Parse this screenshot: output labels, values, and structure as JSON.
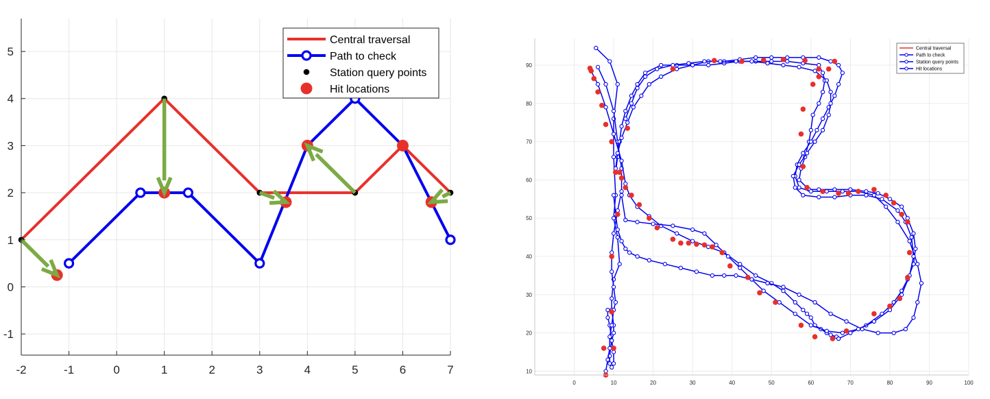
{
  "chart_data": [
    {
      "type": "line",
      "xlim": [
        -2,
        7
      ],
      "ylim": [
        -1.45,
        5.7
      ],
      "xticks": [
        -2,
        -1,
        0,
        1,
        2,
        3,
        4,
        5,
        6,
        7
      ],
      "xtick_labels": [
        "-2",
        "-1",
        "0",
        "1",
        "2",
        "3",
        "4",
        "5",
        "6",
        "7"
      ],
      "yticks": [
        -1,
        0,
        1,
        2,
        3,
        4,
        5
      ],
      "ytick_labels": [
        "-1",
        "0",
        "1",
        "2",
        "3",
        "4",
        "5"
      ],
      "grid": true,
      "legend_position": "top-right",
      "legend": [
        "Central traversal",
        "Path to check",
        "Station query points",
        "Hit locations"
      ],
      "colors": {
        "central": "#e8302a",
        "path": "#0000ee",
        "station": "#000000",
        "hit": "#e8302a",
        "arrow": "#7caa45"
      },
      "series": [
        {
          "name": "Central traversal",
          "x": [
            -2,
            1,
            3,
            5,
            6,
            7
          ],
          "y": [
            1,
            4,
            2,
            2,
            3,
            2
          ]
        },
        {
          "name": "Path to check",
          "x": [
            -1,
            0.5,
            1.5,
            3,
            4,
            5,
            6,
            7
          ],
          "y": [
            0.5,
            2,
            2,
            0.5,
            3,
            4,
            3,
            1
          ]
        },
        {
          "name": "Station query points",
          "x": [
            -2,
            1,
            3,
            5,
            7
          ],
          "y": [
            1,
            4,
            2,
            2,
            2
          ]
        },
        {
          "name": "Hit locations",
          "x": [
            -1.25,
            1,
            3.55,
            4,
            6,
            6.6
          ],
          "y": [
            0.25,
            2,
            1.8,
            3,
            3,
            1.8
          ]
        }
      ],
      "arrows": [
        {
          "from": [
            -2,
            1
          ],
          "to": [
            -1.25,
            0.25
          ]
        },
        {
          "from": [
            1,
            4
          ],
          "to": [
            1,
            2
          ]
        },
        {
          "from": [
            3,
            2
          ],
          "to": [
            3.55,
            1.8
          ]
        },
        {
          "from": [
            5,
            2
          ],
          "to": [
            4,
            3
          ]
        },
        {
          "from": [
            7,
            2
          ],
          "to": [
            6.6,
            1.8
          ]
        }
      ]
    },
    {
      "type": "line",
      "xlim": [
        -10,
        100
      ],
      "ylim": [
        9,
        97
      ],
      "xticks": [
        0,
        10,
        20,
        30,
        40,
        50,
        60,
        70,
        80,
        90,
        100
      ],
      "xtick_labels": [
        "0",
        "10",
        "20",
        "30",
        "40",
        "50",
        "60",
        "70",
        "80",
        "90",
        "100"
      ],
      "yticks": [
        10,
        20,
        30,
        40,
        50,
        60,
        70,
        80,
        90
      ],
      "ytick_labels": [
        "10",
        "20",
        "30",
        "40",
        "50",
        "60",
        "70",
        "80",
        "90"
      ],
      "grid": true,
      "legend_position": "top-right",
      "legend": [
        "Central traversal",
        "Path to check",
        "Station query points",
        "Hit locations"
      ],
      "colors": {
        "central": "#e8302a",
        "path": "#0000ee",
        "hit": "#e8302a"
      },
      "paths": [
        {
          "name": "Path to check",
          "x": [
            5.5,
            9,
            11,
            10,
            10,
            10.5,
            10,
            11,
            11.5,
            10,
            9.5,
            9.5,
            10,
            10,
            9.5,
            10,
            10,
            9.5,
            9,
            9,
            9.5,
            9,
            8.5,
            8.5
          ],
          "y": [
            94.5,
            91,
            85,
            76,
            66,
            56,
            50,
            45,
            38,
            34,
            29,
            26,
            22,
            20,
            18,
            15,
            12,
            11,
            12,
            14,
            18,
            22,
            24,
            26
          ]
        },
        {
          "name": "Path to check",
          "x": [
            6,
            8,
            10,
            11,
            12,
            12,
            11,
            10,
            9.5,
            9.5,
            10,
            10.5,
            10,
            9.5,
            9,
            9,
            8.5,
            8,
            8
          ],
          "y": [
            89.5,
            85,
            78,
            70,
            63,
            57,
            52,
            46,
            41,
            36,
            32,
            28,
            26,
            22,
            19,
            16,
            13,
            10,
            9
          ]
        },
        {
          "name": "Path to check",
          "x": [
            4,
            6,
            8,
            10,
            12,
            13,
            14,
            16,
            19,
            22,
            26,
            30,
            34,
            38,
            42,
            46,
            50,
            53,
            56,
            58,
            59,
            60,
            61,
            62.5,
            64,
            65,
            66.5,
            67
          ],
          "y": [
            89,
            85,
            79,
            72,
            65,
            59,
            56,
            53,
            50.5,
            48,
            46,
            44,
            42.5,
            41,
            38,
            35,
            33,
            31,
            28,
            26,
            25,
            24,
            22,
            21,
            20,
            19.5,
            19,
            18.5
          ]
        },
        {
          "name": "Path to check",
          "x": [
            67,
            70,
            74,
            78,
            81,
            83,
            84.5,
            86,
            86.5,
            86,
            84.5,
            83,
            80,
            77,
            74,
            70,
            66,
            62,
            59.5,
            57,
            57.5,
            58.5,
            59.5,
            60,
            60.5,
            62,
            63,
            63.5,
            63,
            62
          ],
          "y": [
            18.5,
            20,
            22,
            25,
            28,
            31,
            34,
            38,
            42,
            46,
            50,
            53,
            55,
            56.5,
            57,
            57.5,
            57.5,
            57.5,
            57.5,
            60,
            63,
            66,
            70,
            73,
            77,
            80,
            83,
            86,
            88,
            90
          ]
        },
        {
          "name": "Path to check",
          "x": [
            62,
            58,
            54,
            50,
            46,
            42,
            38,
            34,
            30,
            26,
            22,
            18,
            16,
            14.5,
            13,
            12,
            11.5,
            11,
            10.5
          ],
          "y": [
            90,
            90.5,
            91,
            91,
            91,
            91,
            90.5,
            90,
            90,
            90,
            90,
            88,
            85,
            82,
            78,
            74,
            70,
            66,
            62
          ]
        },
        {
          "name": "Path to check",
          "x": [
            10,
            10.5,
            11,
            12,
            13,
            14,
            16,
            19,
            23,
            27,
            31,
            35,
            38,
            41,
            45,
            49,
            53,
            57,
            61,
            65,
            69,
            73,
            77,
            81,
            84,
            86,
            87,
            88,
            87,
            85,
            82,
            79,
            76,
            72,
            68,
            64,
            60,
            57,
            56,
            56.5,
            58,
            60,
            61.5,
            63,
            64.5,
            66,
            67,
            68,
            67,
            65,
            62,
            58,
            54,
            50,
            46,
            42,
            38,
            34,
            30,
            26,
            22,
            19,
            17,
            15,
            13.5,
            12,
            11,
            10.5
          ],
          "y": [
            56,
            51,
            47,
            44,
            42,
            41,
            40,
            39,
            38,
            37,
            36,
            35,
            35,
            35,
            34,
            33,
            32,
            30,
            28,
            25,
            23,
            21,
            20,
            20,
            21,
            24,
            28,
            33,
            38,
            44,
            49,
            53,
            56,
            57,
            57,
            57,
            57,
            58,
            61,
            64,
            67,
            70,
            73,
            76,
            79,
            82,
            85,
            88,
            90,
            91,
            92,
            92,
            92,
            92,
            92,
            91.5,
            91,
            91,
            90,
            89,
            87,
            85,
            82,
            79,
            75,
            71,
            67,
            63
          ]
        },
        {
          "name": "Path to check",
          "x": [
            12,
            13,
            16,
            20,
            25,
            30,
            33,
            36,
            39,
            42,
            45,
            48,
            52,
            56,
            60,
            64,
            68,
            72,
            76,
            80,
            83,
            85,
            86,
            85.5,
            84,
            82,
            78,
            74,
            70,
            66,
            62,
            58,
            56,
            55.5,
            57,
            59,
            61,
            63,
            64.5,
            65,
            65,
            64,
            61,
            57,
            53,
            49,
            45,
            41,
            37,
            33,
            29,
            25,
            21,
            18,
            16,
            14.5,
            13
          ],
          "y": [
            56,
            49.5,
            49,
            48.5,
            48,
            47,
            46,
            43,
            40,
            37,
            34,
            31,
            28,
            25,
            22,
            20.5,
            20,
            21,
            23,
            26,
            30,
            35,
            40,
            45,
            49,
            52,
            55,
            56,
            56,
            55.5,
            55.5,
            56,
            58,
            61,
            64,
            67,
            70,
            73,
            77,
            80,
            83,
            86,
            88.5,
            89.5,
            90,
            90.5,
            91,
            91,
            91,
            91,
            90.5,
            90,
            89,
            87,
            84,
            80,
            76
          ]
        }
      ],
      "hits": {
        "x": [
          4,
          4.3,
          5,
          6,
          7,
          8,
          9.5,
          10.5,
          11.5,
          12,
          13,
          13.5,
          14.5,
          16.5,
          19,
          21,
          25,
          27,
          29,
          31,
          33,
          35,
          37.5,
          39.5,
          44,
          47,
          51,
          57.5,
          61,
          65.5,
          69,
          76,
          80,
          82.5,
          84.5,
          85,
          84.5,
          83,
          81,
          79,
          76,
          72,
          69.5,
          67,
          63,
          59,
          58,
          57.5,
          58,
          60.5,
          62,
          64.5,
          66,
          62,
          58.5,
          53,
          48,
          42.5,
          35.5,
          25,
          11,
          9.5,
          9.5,
          10,
          10.5,
          7.5,
          8
        ],
        "y": [
          89.2,
          88.5,
          86.5,
          83,
          79.5,
          74.5,
          70,
          62,
          62,
          60.5,
          58,
          73.5,
          56,
          53.5,
          50,
          47.5,
          44.5,
          43.5,
          43.5,
          43.2,
          43,
          42.5,
          41,
          37.5,
          34.5,
          30.5,
          28,
          22,
          19,
          18.5,
          20.5,
          25,
          27,
          29,
          34.5,
          41,
          49,
          51,
          54,
          56,
          57.5,
          57,
          56.5,
          56.5,
          57,
          58,
          63.5,
          72,
          78.5,
          85,
          87,
          89,
          91,
          89,
          91.2,
          91.5,
          91.3,
          91,
          91.2,
          89,
          51,
          40,
          25.5,
          16,
          62,
          16,
          9
        ]
      }
    }
  ]
}
